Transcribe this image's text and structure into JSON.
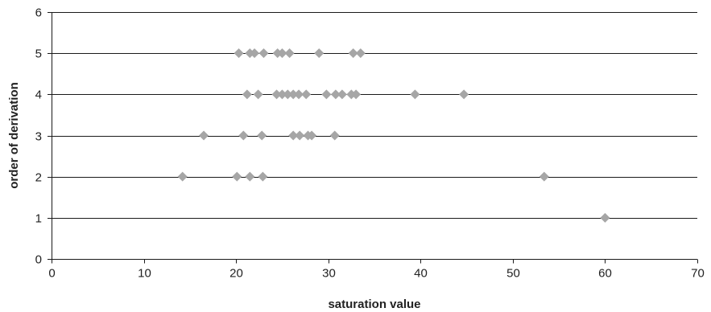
{
  "chart_data": {
    "type": "scatter",
    "title": "",
    "xlabel": "saturation value",
    "ylabel": "order of derivation",
    "xlim": [
      0,
      70
    ],
    "ylim": [
      0,
      6
    ],
    "x_ticks": [
      0,
      10,
      20,
      30,
      40,
      50,
      60,
      70
    ],
    "y_ticks": [
      0,
      1,
      2,
      3,
      4,
      5,
      6
    ],
    "grid": "horizontal",
    "legend": "none",
    "marker": "diamond",
    "marker_color": "#a6a6a6",
    "series": [
      {
        "points": [
          {
            "x": 20.3,
            "y": 5
          },
          {
            "x": 21.5,
            "y": 5
          },
          {
            "x": 22.0,
            "y": 5
          },
          {
            "x": 23.0,
            "y": 5
          },
          {
            "x": 24.5,
            "y": 5
          },
          {
            "x": 25.0,
            "y": 5
          },
          {
            "x": 25.8,
            "y": 5
          },
          {
            "x": 29.0,
            "y": 5
          },
          {
            "x": 32.7,
            "y": 5
          },
          {
            "x": 33.5,
            "y": 5
          },
          {
            "x": 21.2,
            "y": 4
          },
          {
            "x": 22.4,
            "y": 4
          },
          {
            "x": 24.4,
            "y": 4
          },
          {
            "x": 25.0,
            "y": 4
          },
          {
            "x": 25.6,
            "y": 4
          },
          {
            "x": 26.2,
            "y": 4
          },
          {
            "x": 26.8,
            "y": 4
          },
          {
            "x": 27.6,
            "y": 4
          },
          {
            "x": 29.8,
            "y": 4
          },
          {
            "x": 30.8,
            "y": 4
          },
          {
            "x": 31.5,
            "y": 4
          },
          {
            "x": 32.5,
            "y": 4
          },
          {
            "x": 33.0,
            "y": 4
          },
          {
            "x": 39.4,
            "y": 4
          },
          {
            "x": 44.7,
            "y": 4
          },
          {
            "x": 16.5,
            "y": 3
          },
          {
            "x": 20.8,
            "y": 3
          },
          {
            "x": 22.8,
            "y": 3
          },
          {
            "x": 26.2,
            "y": 3
          },
          {
            "x": 26.9,
            "y": 3
          },
          {
            "x": 27.8,
            "y": 3
          },
          {
            "x": 28.2,
            "y": 3
          },
          {
            "x": 30.7,
            "y": 3
          },
          {
            "x": 14.2,
            "y": 2
          },
          {
            "x": 20.1,
            "y": 2
          },
          {
            "x": 21.5,
            "y": 2
          },
          {
            "x": 22.9,
            "y": 2
          },
          {
            "x": 53.4,
            "y": 2
          },
          {
            "x": 60.0,
            "y": 1
          }
        ]
      }
    ]
  }
}
